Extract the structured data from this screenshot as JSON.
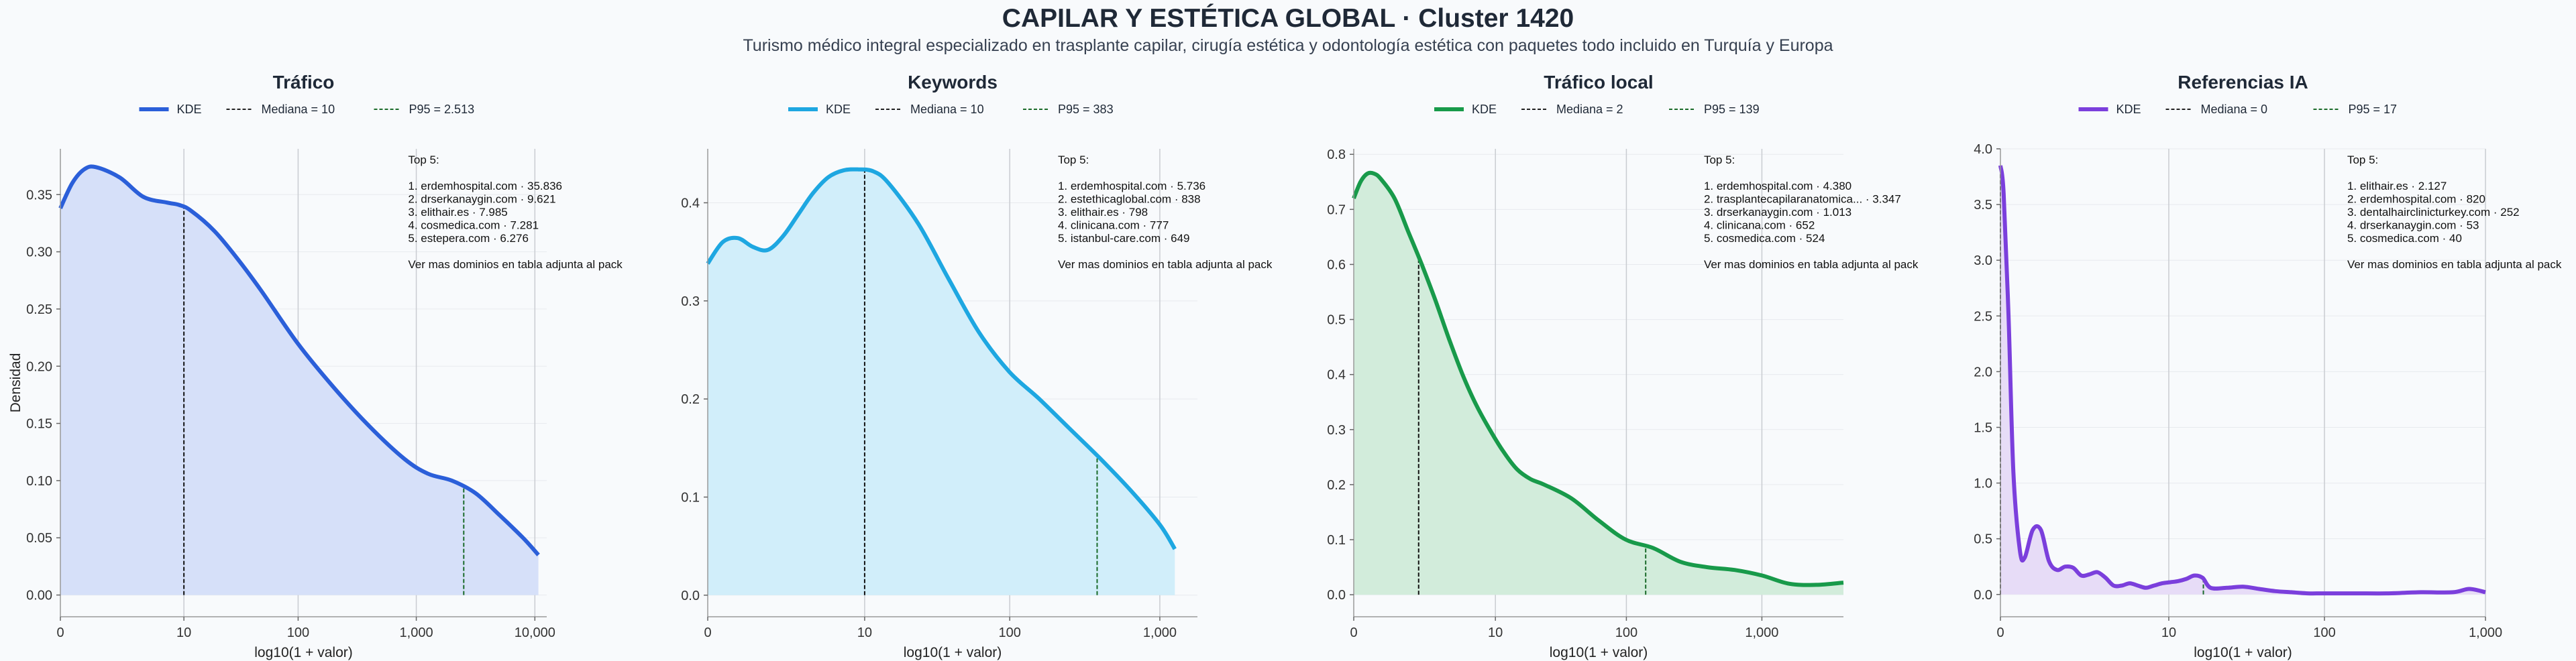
{
  "header": {
    "title": "CAPILAR Y ESTÉTICA GLOBAL · Cluster 1420",
    "subtitle": "Turismo médico integral especializado en trasplante capilar, cirugía estética y odontología estética con paquetes todo incluido en Turquía y Europa"
  },
  "chart_data": [
    {
      "type": "area",
      "title": "Tráfico",
      "xlabel": "log10(1 + valor)",
      "ylabel": "Densidad",
      "color": "#2b5fd9",
      "fill": "#d6e0f9",
      "x_ticks": [
        "0",
        "10",
        "100",
        "1,000",
        "10,000"
      ],
      "x_tick_pos": [
        0,
        1.0414,
        2.0043,
        3.0004,
        4.0
      ],
      "xlim": [
        0,
        4.1
      ],
      "y_ticks": [
        "0.00",
        "0.05",
        "0.10",
        "0.15",
        "0.20",
        "0.25",
        "0.30",
        "0.35"
      ],
      "ylim": [
        -0.019,
        0.39
      ],
      "x": [
        0,
        0.1,
        0.2,
        0.3,
        0.5,
        0.7,
        0.9,
        1.0,
        1.1,
        1.3,
        1.5,
        1.7,
        2.0,
        2.3,
        2.6,
        2.9,
        3.1,
        3.3,
        3.5,
        3.7,
        3.9,
        4.03
      ],
      "y": [
        0.338,
        0.36,
        0.372,
        0.374,
        0.365,
        0.348,
        0.343,
        0.341,
        0.336,
        0.318,
        0.293,
        0.265,
        0.22,
        0.182,
        0.148,
        0.119,
        0.106,
        0.1,
        0.089,
        0.07,
        0.05,
        0.035
      ],
      "legend": [
        "KDE",
        "Mediana = 10",
        "P95 = 2.513"
      ],
      "median_x": 1.0414,
      "p95_x": 3.4004,
      "annotation": {
        "header": "Top 5:",
        "items": [
          "1. erdemhospital.com · 35.836",
          "2. drserkanaygin.com · 9.621",
          "3. elithair.es · 7.985",
          "4. cosmedica.com · 7.281",
          "5. estepera.com · 6.276"
        ],
        "footer": "Ver mas dominios en tabla adjunta al pack"
      }
    },
    {
      "type": "area",
      "title": "Keywords",
      "xlabel": "log10(1 + valor)",
      "ylabel": "",
      "color": "#1ea7e1",
      "fill": "#d1eefa",
      "x_ticks": [
        "0",
        "10",
        "100",
        "1,000"
      ],
      "x_tick_pos": [
        0,
        1.0414,
        2.0043,
        3.0004
      ],
      "xlim": [
        0,
        3.25
      ],
      "y_ticks": [
        "0.0",
        "0.1",
        "0.2",
        "0.3",
        "0.4"
      ],
      "ylim": [
        -0.022,
        0.455
      ],
      "x": [
        0,
        0.1,
        0.2,
        0.3,
        0.4,
        0.5,
        0.6,
        0.7,
        0.8,
        0.9,
        1.0,
        1.1,
        1.2,
        1.4,
        1.6,
        1.8,
        2.0,
        2.2,
        2.4,
        2.6,
        2.8,
        3.0,
        3.1
      ],
      "y": [
        0.338,
        0.36,
        0.364,
        0.355,
        0.352,
        0.366,
        0.388,
        0.41,
        0.426,
        0.433,
        0.434,
        0.432,
        0.42,
        0.378,
        0.322,
        0.268,
        0.228,
        0.2,
        0.17,
        0.14,
        0.108,
        0.072,
        0.047
      ],
      "legend": [
        "KDE",
        "Mediana = 10",
        "P95 = 383"
      ],
      "median_x": 1.0414,
      "p95_x": 2.5843,
      "annotation": {
        "header": "Top 5:",
        "items": [
          "1. erdemhospital.com · 5.736",
          "2. estethicaglobal.com · 838",
          "3. elithair.es · 798",
          "4. clinicana.com · 777",
          "5. istanbul-care.com · 649"
        ],
        "footer": "Ver mas dominios en tabla adjunta al pack"
      }
    },
    {
      "type": "area",
      "title": "Tráfico local",
      "xlabel": "log10(1 + valor)",
      "ylabel": "",
      "color": "#189a4a",
      "fill": "#d2ecdb",
      "x_ticks": [
        "0",
        "10",
        "100",
        "1,000"
      ],
      "x_tick_pos": [
        0,
        1.0414,
        2.0043,
        3.0004
      ],
      "xlim": [
        0,
        3.6
      ],
      "y_ticks": [
        "0.0",
        "0.1",
        "0.2",
        "0.3",
        "0.4",
        "0.5",
        "0.6",
        "0.7",
        "0.8"
      ],
      "ylim": [
        -0.04,
        0.81
      ],
      "x": [
        0,
        0.05,
        0.1,
        0.15,
        0.2,
        0.3,
        0.4,
        0.5,
        0.6,
        0.7,
        0.8,
        0.9,
        1.0,
        1.1,
        1.2,
        1.3,
        1.4,
        1.6,
        1.8,
        2.0,
        2.2,
        2.4,
        2.6,
        2.8,
        3.0,
        3.2,
        3.4,
        3.6
      ],
      "y": [
        0.72,
        0.75,
        0.765,
        0.765,
        0.755,
        0.72,
        0.66,
        0.6,
        0.535,
        0.465,
        0.4,
        0.345,
        0.3,
        0.26,
        0.228,
        0.21,
        0.2,
        0.175,
        0.135,
        0.1,
        0.085,
        0.06,
        0.05,
        0.045,
        0.035,
        0.02,
        0.018,
        0.022
      ],
      "legend": [
        "KDE",
        "Mediana = 2",
        "P95 = 139"
      ],
      "median_x": 0.4771,
      "p95_x": 2.1461,
      "annotation": {
        "header": "Top 5:",
        "items": [
          "1. erdemhospital.com · 4.380",
          "2. trasplantecapilaranatomica... · 3.347",
          "3. drserkanaygin.com · 1.013",
          "4. clinicana.com · 652",
          "5. cosmedica.com · 524"
        ],
        "footer": "Ver mas dominios en tabla adjunta al pack"
      }
    },
    {
      "type": "area",
      "title": "Referencias IA",
      "xlabel": "log10(1 + valor)",
      "ylabel": "",
      "color": "#7b3fdc",
      "fill": "#e7dcf7",
      "x_ticks": [
        "0",
        "10",
        "100",
        "1,000"
      ],
      "x_tick_pos": [
        0,
        1.0414,
        2.0043,
        3.0004
      ],
      "xlim": [
        0,
        3.0
      ],
      "y_ticks": [
        "0.0",
        "0.5",
        "1.0",
        "1.5",
        "2.0",
        "2.5",
        "3.0",
        "3.5",
        "4.0"
      ],
      "ylim": [
        -0.2,
        4.0
      ],
      "x": [
        0,
        0.02,
        0.05,
        0.08,
        0.12,
        0.15,
        0.2,
        0.25,
        0.3,
        0.35,
        0.4,
        0.45,
        0.5,
        0.55,
        0.6,
        0.65,
        0.7,
        0.75,
        0.8,
        0.85,
        0.9,
        0.95,
        1.0,
        1.05,
        1.1,
        1.15,
        1.2,
        1.25,
        1.3,
        1.4,
        1.5,
        1.6,
        1.7,
        1.8,
        1.9,
        2.0,
        2.2,
        2.4,
        2.6,
        2.8,
        2.9,
        3.0
      ],
      "y": [
        3.85,
        3.6,
        2.5,
        1.1,
        0.4,
        0.33,
        0.58,
        0.58,
        0.3,
        0.22,
        0.25,
        0.24,
        0.17,
        0.18,
        0.2,
        0.15,
        0.08,
        0.08,
        0.1,
        0.08,
        0.06,
        0.08,
        0.1,
        0.11,
        0.12,
        0.14,
        0.17,
        0.15,
        0.06,
        0.06,
        0.07,
        0.05,
        0.03,
        0.02,
        0.01,
        0.01,
        0.01,
        0.01,
        0.02,
        0.02,
        0.05,
        0.02
      ],
      "legend": [
        "KDE",
        "Mediana = 0",
        "P95 = 17"
      ],
      "median_x": 0,
      "p95_x": 1.2553,
      "annotation": {
        "header": "Top 5:",
        "items": [
          "1. elithair.es · 2.127",
          "2. erdemhospital.com · 820",
          "3. dentalhairclinicturkey.com · 252",
          "4. drserkanaygin.com · 53",
          "5. cosmedica.com · 40"
        ],
        "footer": "Ver mas dominios en tabla adjunta al pack"
      }
    }
  ]
}
